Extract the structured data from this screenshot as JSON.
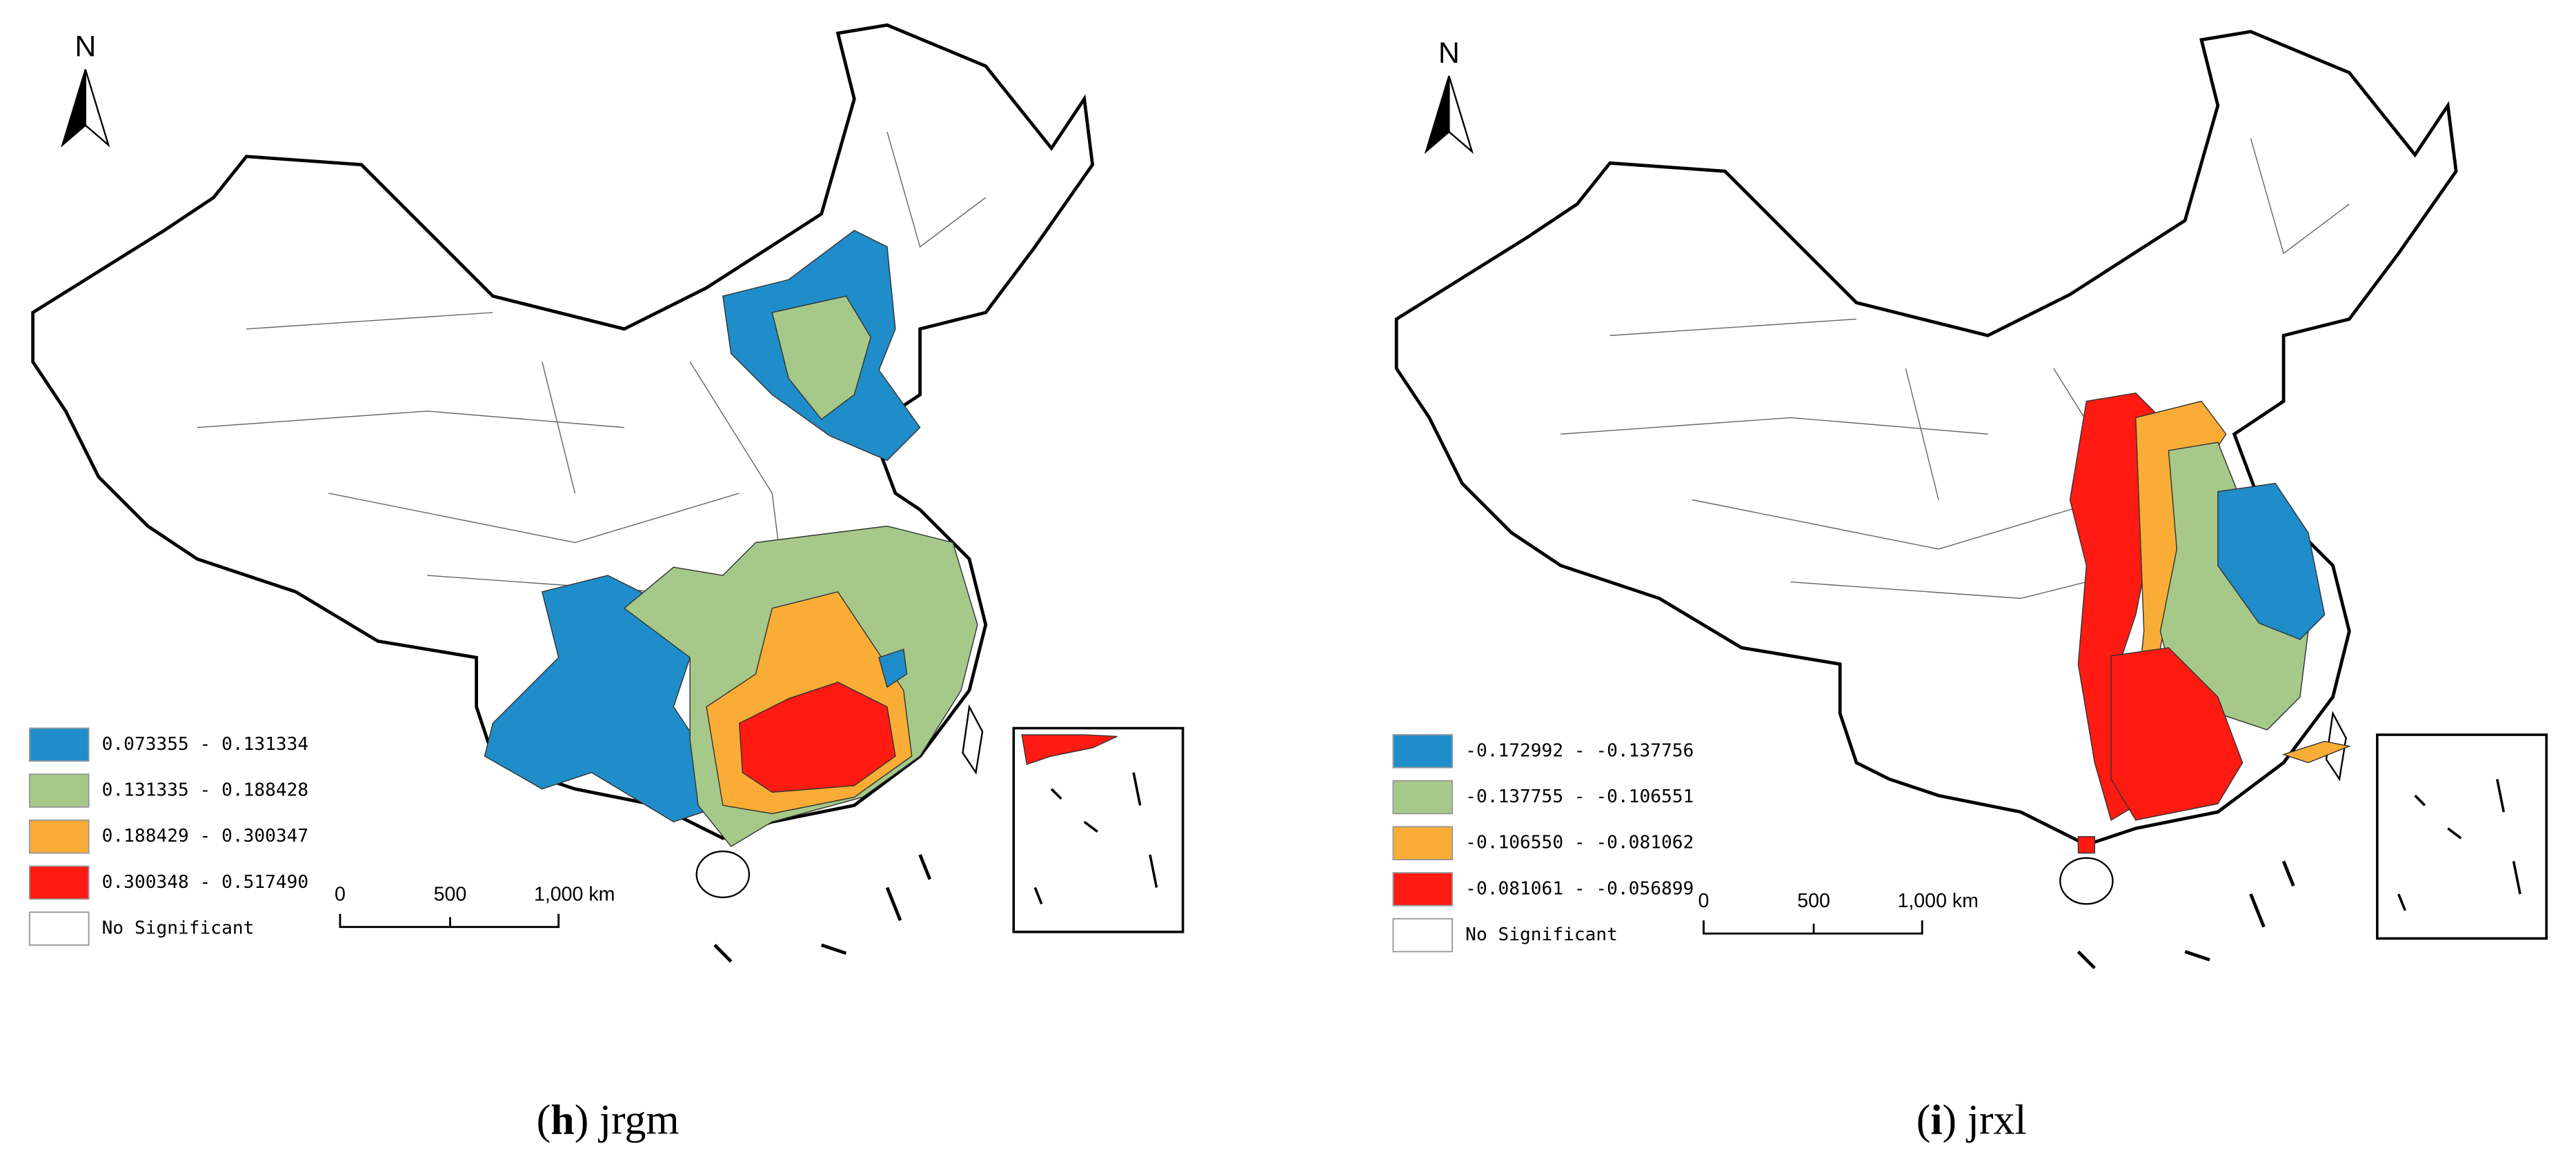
{
  "panels": [
    {
      "north": "N",
      "legend": [
        {
          "label": "0.073355 - 0.131334",
          "color": "#1f8dc9"
        },
        {
          "label": "0.131335 - 0.188428",
          "color": "#a6c98a"
        },
        {
          "label": "0.188429 - 0.300347",
          "color": "#f9ad36"
        },
        {
          "label": "0.300348 - 0.517490",
          "color": "#ff1a12"
        },
        {
          "label": "No Significant",
          "color": "#ffffff"
        }
      ],
      "scale": [
        "0",
        "500",
        "1,000 km"
      ],
      "caption": [
        "(",
        "h",
        ") jrgm"
      ]
    },
    {
      "north": "N",
      "legend": [
        {
          "label": "-0.172992 - -0.137756",
          "color": "#1f8dc9"
        },
        {
          "label": "-0.137755 - -0.106551",
          "color": "#a6c98a"
        },
        {
          "label": "-0.106550 - -0.081062",
          "color": "#f9ad36"
        },
        {
          "label": "-0.081061 - -0.056899",
          "color": "#ff1a12"
        },
        {
          "label": "No Significant",
          "color": "#ffffff"
        }
      ],
      "scale": [
        "0",
        "500",
        "1,000 km"
      ],
      "caption": [
        "(",
        "i",
        ") jrxl"
      ]
    }
  ]
}
